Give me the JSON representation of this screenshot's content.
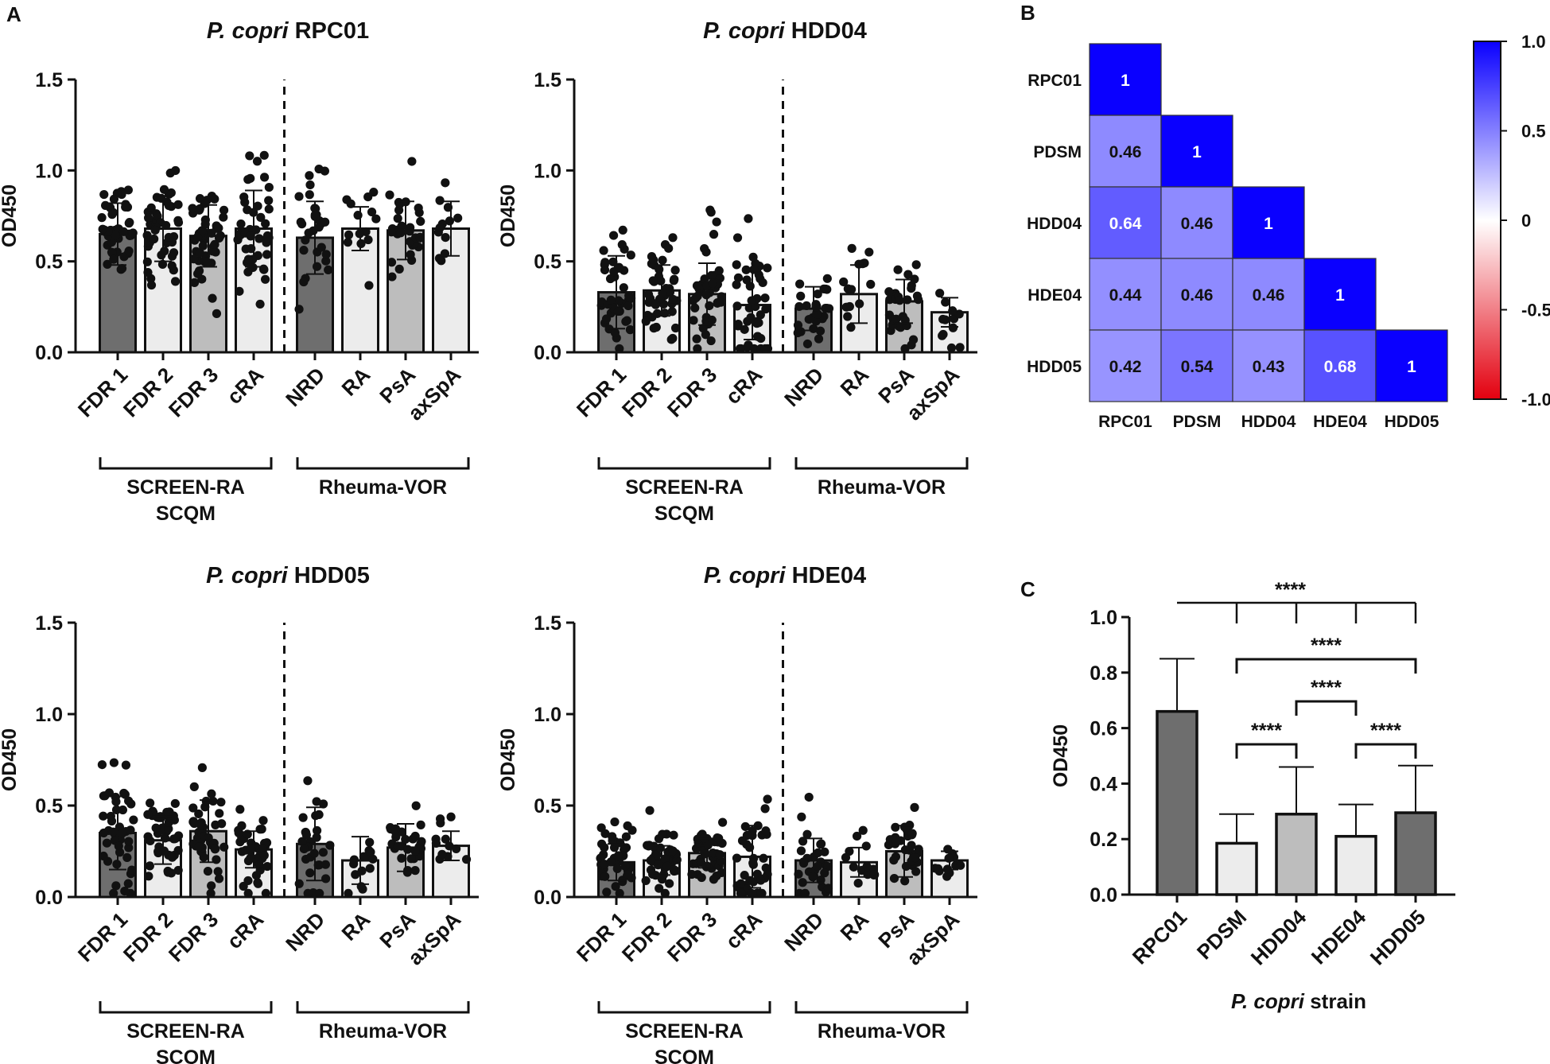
{
  "figure": {
    "panel_labels": [
      "A",
      "B",
      "C"
    ]
  },
  "colors": {
    "bar_dark": "#6e6e6e",
    "bar_light": "#ececec",
    "bar_mid": "#bdbdbd",
    "ink": "#111111",
    "heat_pos": "#0a00ff",
    "heat_neg": "#e3000f"
  },
  "chart_data": [
    {
      "id": "rpc01",
      "type": "bar",
      "title_italic": "P. copri",
      "title_rest": " RPC01",
      "ylabel": "OD450",
      "ylim": [
        0,
        1.5
      ],
      "yticks": [
        "0.0",
        "0.5",
        "1.0",
        "1.5"
      ],
      "categories": [
        "FDR 1",
        "FDR 2",
        "FDR 3",
        "cRA",
        "NRD",
        "RA",
        "PsA",
        "axSpA"
      ],
      "groups": [
        {
          "label_lines": [
            "SCREEN-RA",
            "SCQM"
          ],
          "from": 0,
          "to": 3
        },
        {
          "label_lines": [
            "Rheuma-VOR"
          ],
          "from": 4,
          "to": 7
        }
      ],
      "means": [
        0.65,
        0.68,
        0.64,
        0.68,
        0.63,
        0.68,
        0.67,
        0.68
      ],
      "sd": [
        0.17,
        0.18,
        0.17,
        0.21,
        0.2,
        0.12,
        0.16,
        0.15
      ],
      "counts": [
        45,
        45,
        45,
        45,
        30,
        14,
        30,
        12
      ]
    },
    {
      "id": "hdd04",
      "type": "bar",
      "title_italic": "P. copri",
      "title_rest": " HDD04",
      "ylabel": "OD450",
      "ylim": [
        0,
        1.5
      ],
      "yticks": [
        "0.0",
        "0.5",
        "1.0",
        "1.5"
      ],
      "categories": [
        "FDR 1",
        "FDR 2",
        "FDR 3",
        "cRA",
        "NRD",
        "RA",
        "PsA",
        "axSpA"
      ],
      "groups": [
        {
          "label_lines": [
            "SCREEN-RA",
            "SCQM"
          ],
          "from": 0,
          "to": 3
        },
        {
          "label_lines": [
            "Rheuma-VOR"
          ],
          "from": 4,
          "to": 7
        }
      ],
      "means": [
        0.33,
        0.34,
        0.32,
        0.26,
        0.24,
        0.32,
        0.28,
        0.22
      ],
      "sd": [
        0.2,
        0.14,
        0.17,
        0.19,
        0.12,
        0.16,
        0.12,
        0.08
      ],
      "counts": [
        45,
        45,
        45,
        45,
        30,
        14,
        30,
        12
      ]
    },
    {
      "id": "hdd05",
      "type": "bar",
      "title_italic": "P. copri",
      "title_rest": " HDD05",
      "ylabel": "OD450",
      "ylim": [
        0,
        1.5
      ],
      "yticks": [
        "0.0",
        "0.5",
        "1.0",
        "1.5"
      ],
      "categories": [
        "FDR 1",
        "FDR 2",
        "FDR 3",
        "cRA",
        "NRD",
        "RA",
        "PsA",
        "axSpA"
      ],
      "groups": [
        {
          "label_lines": [
            "SCREEN-RA",
            "SCQM"
          ],
          "from": 0,
          "to": 3
        },
        {
          "label_lines": [
            "Rheuma-VOR"
          ],
          "from": 4,
          "to": 7
        }
      ],
      "means": [
        0.35,
        0.31,
        0.36,
        0.26,
        0.29,
        0.2,
        0.27,
        0.28
      ],
      "sd": [
        0.2,
        0.13,
        0.17,
        0.1,
        0.2,
        0.13,
        0.13,
        0.08
      ],
      "counts": [
        45,
        45,
        45,
        45,
        30,
        14,
        30,
        12
      ]
    },
    {
      "id": "hde04",
      "type": "bar",
      "title_italic": "P. copri",
      "title_rest": " HDE04",
      "ylabel": "OD450",
      "ylim": [
        0,
        1.5
      ],
      "yticks": [
        "0.0",
        "0.5",
        "1.0",
        "1.5"
      ],
      "categories": [
        "FDR 1",
        "FDR 2",
        "FDR 3",
        "cRA",
        "NRD",
        "RA",
        "PsA",
        "axSpA"
      ],
      "groups": [
        {
          "label_lines": [
            "SCREEN-RA",
            "SCQM"
          ],
          "from": 0,
          "to": 3
        },
        {
          "label_lines": [
            "Rheuma-VOR"
          ],
          "from": 4,
          "to": 7
        }
      ],
      "means": [
        0.19,
        0.2,
        0.24,
        0.22,
        0.2,
        0.19,
        0.25,
        0.2
      ],
      "sd": [
        0.1,
        0.08,
        0.08,
        0.17,
        0.12,
        0.08,
        0.14,
        0.05
      ],
      "counts": [
        45,
        45,
        45,
        45,
        30,
        14,
        30,
        12
      ]
    },
    {
      "id": "correlation",
      "type": "heatmap",
      "labels": [
        "RPC01",
        "PDSM",
        "HDD04",
        "HDE04",
        "HDD05"
      ],
      "matrix": [
        [
          1.0,
          null,
          null,
          null,
          null
        ],
        [
          0.46,
          1.0,
          null,
          null,
          null
        ],
        [
          0.64,
          0.46,
          1.0,
          null,
          null
        ],
        [
          0.44,
          0.46,
          0.46,
          1.0,
          null
        ],
        [
          0.42,
          0.54,
          0.43,
          0.68,
          1.0
        ]
      ],
      "colorbar": {
        "min": -1.0,
        "max": 1.0,
        "ticks": [
          "1.0",
          "0.5",
          "0",
          "-0.5",
          "-1.0"
        ]
      }
    },
    {
      "id": "strains",
      "type": "bar",
      "xlabel_italic": "P. copri",
      "xlabel_rest": " strain",
      "ylabel": "OD450",
      "ylim": [
        0,
        1.0
      ],
      "yticks": [
        "0.0",
        "0.2",
        "0.4",
        "0.6",
        "0.8",
        "1.0"
      ],
      "categories": [
        "RPC01",
        "PDSM",
        "HDD04",
        "HDE04",
        "HDD05"
      ],
      "values": [
        0.66,
        0.185,
        0.29,
        0.21,
        0.295
      ],
      "errors": [
        0.19,
        0.105,
        0.17,
        0.115,
        0.17
      ],
      "significance": [
        {
          "label": "****",
          "type": "one-to-many",
          "from": 0,
          "to": [
            1,
            2,
            3,
            4
          ]
        },
        {
          "label": "****",
          "from": 1,
          "to": 4
        },
        {
          "label": "****",
          "from": 2,
          "to": 3
        },
        {
          "label": "****",
          "from": 1,
          "to": 2
        },
        {
          "label": "****",
          "from": 3,
          "to": 4
        }
      ]
    }
  ]
}
